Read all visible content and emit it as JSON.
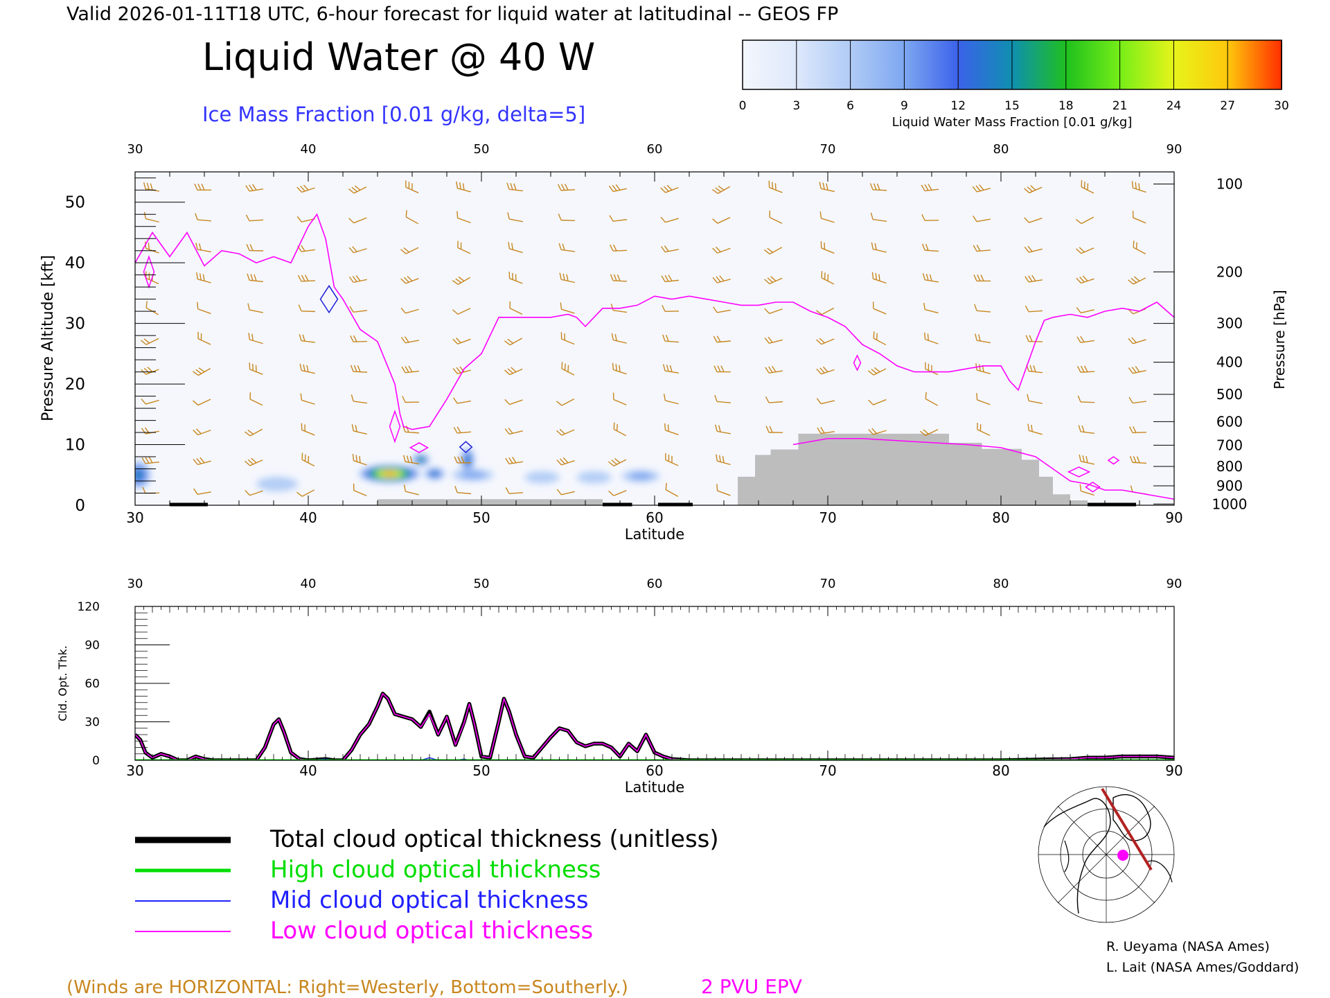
{
  "header": {
    "valid_line": "Valid 2026-01-11T18 UTC, 6-hour forecast for liquid water at latitudinal -- GEOS FP",
    "title": "Liquid Water @ 40 W",
    "subtitle": "Ice Mass Fraction [0.01 g/kg, delta=5]"
  },
  "colorbar": {
    "label": "Liquid Water Mass Fraction [0.01 g/kg]",
    "ticks": [
      "0",
      "3",
      "6",
      "9",
      "12",
      "15",
      "18",
      "21",
      "24",
      "27",
      "30"
    ],
    "colors": [
      "#f4f7fd",
      "#dde8fb",
      "#b0cbf6",
      "#7ea7f1",
      "#3b62ea",
      "#0f8fb0",
      "#1ec01e",
      "#76ee18",
      "#e7f41a",
      "#ffc80c",
      "#ff8a0a",
      "#ff2d00"
    ]
  },
  "colors": {
    "wind_barbs": "#c8861e",
    "epv_contour": "#ff00ff",
    "ice_contour": "#1f1fd6",
    "terrain": "#bdbdbd",
    "total_line": "#000000",
    "high_line": "#00dd00",
    "mid_line": "#2020ff",
    "low_line": "#ff00ff"
  },
  "chart_data": [
    {
      "type": "heatmap",
      "name": "upper-panel",
      "xlabel": "Latitude",
      "ylabel": "Pressure Altitude [kft]",
      "y2label": "Pressure [hPa]",
      "xlim": [
        30,
        90
      ],
      "ylim": [
        0,
        55
      ],
      "x_ticks": [
        30,
        40,
        50,
        60,
        70,
        80,
        90
      ],
      "y_ticks": [
        0,
        10,
        20,
        30,
        40,
        50
      ],
      "pressure_ticks": [
        {
          "label": "100",
          "kft": 53
        },
        {
          "label": "200",
          "kft": 38.5
        },
        {
          "label": "300",
          "kft": 30
        },
        {
          "label": "400",
          "kft": 23.6
        },
        {
          "label": "500",
          "kft": 18.3
        },
        {
          "label": "600",
          "kft": 13.8
        },
        {
          "label": "700",
          "kft": 9.9
        },
        {
          "label": "800",
          "kft": 6.4
        },
        {
          "label": "900",
          "kft": 3.2
        },
        {
          "label": "1000",
          "kft": 0.2
        }
      ],
      "epv_2pvu_line": {
        "lat": [
          30,
          31,
          32,
          33,
          34,
          35,
          36,
          37,
          38,
          39,
          40,
          40.5,
          41,
          41.5,
          42,
          43,
          44,
          45,
          45.3,
          45.5,
          46,
          47,
          48,
          49,
          50,
          51,
          52,
          53,
          54,
          55,
          55.5,
          56,
          57,
          58,
          59,
          60,
          61,
          62,
          63,
          64,
          65,
          66,
          67,
          68,
          69,
          70,
          71,
          72,
          73,
          74,
          75,
          76,
          77,
          78,
          79,
          80,
          80.5,
          81,
          81.5,
          82,
          82.5,
          83,
          84,
          85,
          86,
          87,
          88,
          89,
          90
        ],
        "kft": [
          40,
          45,
          41,
          45,
          39.5,
          42,
          41.5,
          40,
          41,
          40,
          46,
          48,
          44,
          36,
          34,
          29,
          27,
          20,
          15,
          13,
          12.5,
          13,
          17.5,
          22.5,
          25,
          31,
          31,
          31,
          31,
          31.5,
          31,
          29.5,
          32.5,
          32.5,
          33,
          34.5,
          34,
          34.5,
          34,
          33.5,
          33,
          33,
          33.5,
          33.5,
          32,
          31,
          29.5,
          26.5,
          25,
          23,
          22,
          22,
          22,
          22.5,
          23,
          23,
          20.5,
          19,
          23,
          27,
          30.5,
          31,
          31.5,
          31,
          32,
          32.5,
          32,
          33.5,
          31
        ]
      },
      "epv_low_contour": {
        "lat": [
          68,
          70,
          72,
          75,
          78,
          80,
          82,
          83,
          84,
          85,
          86,
          87,
          88,
          89,
          90
        ],
        "kft": [
          10,
          11,
          11,
          10.5,
          10,
          9.5,
          8,
          6,
          4,
          3.5,
          2.5,
          2.5,
          2,
          1.5,
          1
        ]
      },
      "terrain": [
        {
          "lat0": 44,
          "lat1": 57,
          "kft": 1
        },
        {
          "lat0": 64.8,
          "lat1": 65.8,
          "kft": 4.7
        },
        {
          "lat0": 65.8,
          "lat1": 66.7,
          "kft": 8.3
        },
        {
          "lat0": 66.7,
          "lat1": 68.3,
          "kft": 9.2
        },
        {
          "lat0": 68.3,
          "lat1": 77,
          "kft": 11.8
        },
        {
          "lat0": 77,
          "lat1": 78.9,
          "kft": 10.3
        },
        {
          "lat0": 78.9,
          "lat1": 81.2,
          "kft": 9.3
        },
        {
          "lat0": 81.2,
          "lat1": 82.2,
          "kft": 7.5
        },
        {
          "lat0": 82.2,
          "lat1": 83,
          "kft": 4.7
        },
        {
          "lat0": 83,
          "lat1": 84,
          "kft": 1.8
        },
        {
          "lat0": 84,
          "lat1": 85,
          "kft": 0.8
        }
      ],
      "surface_segments": [
        {
          "lat0": 32,
          "lat1": 34.2
        },
        {
          "lat0": 57,
          "lat1": 58.7
        },
        {
          "lat0": 60.2,
          "lat1": 62.2
        },
        {
          "lat0": 85,
          "lat1": 87.8
        }
      ],
      "liquid_water_blobs": [
        {
          "lat": 30.2,
          "kft": 5,
          "w": 0.7,
          "h": 2.3,
          "value": 13
        },
        {
          "lat": 38.2,
          "kft": 3.5,
          "w": 1.2,
          "h": 1.2,
          "value": 3
        },
        {
          "lat": 44.7,
          "kft": 5.2,
          "w": 1.8,
          "h": 1.5,
          "value": 27
        },
        {
          "lat": 46.5,
          "kft": 7.5,
          "w": 0.5,
          "h": 1.0,
          "value": 15
        },
        {
          "lat": 47.3,
          "kft": 5.2,
          "w": 0.6,
          "h": 1.0,
          "value": 12
        },
        {
          "lat": 49.2,
          "kft": 7.5,
          "w": 0.4,
          "h": 2.0,
          "value": 14
        },
        {
          "lat": 49.5,
          "kft": 5.0,
          "w": 1.2,
          "h": 1.0,
          "value": 6
        },
        {
          "lat": 53.5,
          "kft": 4.6,
          "w": 1.0,
          "h": 1.0,
          "value": 3
        },
        {
          "lat": 56.5,
          "kft": 4.6,
          "w": 1.0,
          "h": 1.0,
          "value": 3
        },
        {
          "lat": 59.2,
          "kft": 4.8,
          "w": 1.1,
          "h": 1.0,
          "value": 6
        }
      ]
    },
    {
      "type": "line",
      "name": "lower-panel",
      "xlabel": "Latitude",
      "ylabel": "Cld. Opt. Thk.",
      "xlim": [
        30,
        90
      ],
      "ylim": [
        0,
        120
      ],
      "x_ticks": [
        30,
        40,
        50,
        60,
        70,
        80,
        90
      ],
      "y_ticks": [
        0,
        30,
        60,
        90,
        120
      ],
      "x": [
        30,
        30.3,
        30.6,
        31,
        31.5,
        32,
        32.5,
        33,
        33.5,
        34,
        34.5,
        35,
        36,
        37,
        37.5,
        38,
        38.3,
        38.6,
        39,
        39.5,
        40,
        41,
        41.5,
        42,
        42.5,
        43,
        43.5,
        44,
        44.3,
        44.6,
        45,
        45.5,
        46,
        46.5,
        47,
        47.5,
        48,
        48.5,
        49,
        49.3,
        49.6,
        50,
        50.5,
        51,
        51.3,
        51.6,
        52,
        52.5,
        53,
        53.5,
        54,
        54.5,
        55,
        55.5,
        56,
        56.5,
        57,
        57.5,
        58,
        58.5,
        59,
        59.5,
        60,
        60.5,
        61,
        62,
        65,
        70,
        75,
        80,
        84,
        85,
        86,
        87,
        88,
        89,
        90
      ],
      "series": [
        {
          "name": "Total cloud optical thickness (unitless)",
          "values": [
            20,
            16,
            6,
            2,
            5,
            3,
            0,
            0,
            3,
            1,
            0,
            0,
            0,
            0,
            10,
            28,
            32,
            22,
            6,
            1,
            0,
            1,
            0,
            0,
            8,
            20,
            28,
            42,
            52,
            48,
            36,
            34,
            32,
            26,
            38,
            20,
            34,
            12,
            30,
            44,
            28,
            3,
            2,
            30,
            48,
            38,
            20,
            3,
            2,
            10,
            18,
            25,
            23,
            14,
            11,
            13,
            13,
            10,
            3,
            13,
            7,
            20,
            6,
            3,
            1,
            0,
            0,
            0,
            0,
            0,
            1,
            2,
            2,
            3,
            3,
            3,
            2
          ]
        },
        {
          "name": "High cloud optical thickness",
          "values": [
            0,
            0,
            0,
            0,
            0,
            0,
            0,
            0,
            0,
            0,
            0,
            0,
            0,
            0,
            0,
            0,
            0,
            0,
            0,
            0,
            0,
            0,
            0,
            0,
            0,
            0,
            0,
            0,
            0,
            0,
            0,
            0,
            0,
            0,
            0,
            0,
            0,
            0,
            0,
            0,
            0,
            0,
            0,
            0,
            0,
            0,
            0,
            0,
            0,
            0,
            0,
            0,
            0,
            0,
            0,
            0,
            0,
            0,
            0,
            0,
            0,
            0,
            0,
            0,
            0,
            0,
            0,
            0,
            0,
            0,
            0,
            0,
            0,
            0,
            0,
            0,
            0
          ]
        },
        {
          "name": "Mid cloud optical thickness",
          "values": [
            0,
            0,
            0,
            0,
            0,
            0,
            0,
            0,
            0,
            0,
            0,
            0,
            0,
            0,
            0,
            0,
            0,
            0,
            0,
            0,
            0,
            1,
            0,
            0,
            0,
            0,
            0,
            0,
            0,
            0,
            0,
            0,
            0,
            0,
            2,
            0,
            0,
            0,
            1,
            0,
            0,
            0,
            0,
            0,
            0,
            0,
            0,
            0,
            0,
            0,
            0,
            0,
            0,
            0,
            0,
            0,
            0,
            0,
            0,
            0,
            0,
            0,
            0,
            0,
            0,
            0,
            0,
            0,
            0,
            0,
            0,
            0,
            0,
            0,
            0,
            0,
            0
          ]
        },
        {
          "name": "Low cloud optical thickness",
          "values": [
            20,
            16,
            6,
            2,
            5,
            3,
            0,
            0,
            3,
            1,
            0,
            0,
            0,
            0,
            10,
            28,
            32,
            22,
            6,
            1,
            0,
            0,
            0,
            0,
            8,
            20,
            28,
            42,
            52,
            48,
            36,
            34,
            32,
            26,
            36,
            20,
            34,
            12,
            29,
            44,
            28,
            3,
            2,
            30,
            48,
            38,
            20,
            3,
            2,
            10,
            18,
            25,
            23,
            14,
            11,
            13,
            13,
            10,
            3,
            13,
            7,
            20,
            6,
            3,
            1,
            0,
            0,
            0,
            0,
            0,
            1,
            2,
            2,
            3,
            3,
            3,
            2
          ]
        }
      ]
    }
  ],
  "legend": [
    {
      "label": "Total cloud optical thickness (unitless)",
      "color": "#000000"
    },
    {
      "label": "High cloud optical thickness",
      "color": "#00dd00"
    },
    {
      "label": "Mid cloud optical thickness",
      "color": "#2020ff"
    },
    {
      "label": "Low cloud optical thickness",
      "color": "#ff00ff"
    }
  ],
  "credits": [
    "R. Ueyama (NASA Ames)",
    "L. Lait (NASA Ames/Goddard)"
  ],
  "footer": {
    "winds_note": "(Winds are HORIZONTAL: Right=Westerly, Bottom=Southerly.)",
    "epv_label": "2 PVU EPV"
  }
}
